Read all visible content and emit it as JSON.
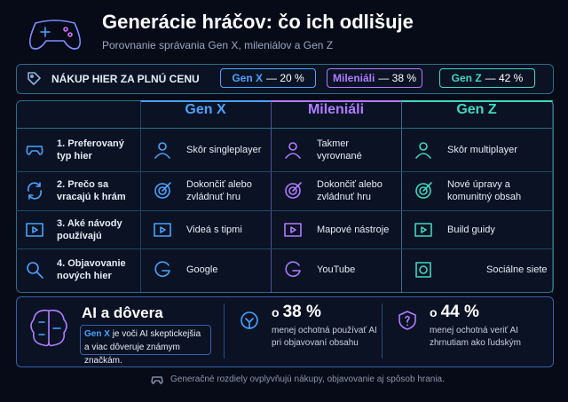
{
  "header": {
    "title": "Generácie hráčov: čo ich odlišuje",
    "subtitle": "Porovnanie správania Gen X, mileniálov a Gen Z"
  },
  "purchase": {
    "label": "NÁKUP HIER ZA PLNÚ CENU",
    "groups": [
      {
        "name": "Gen X",
        "value": "— 20 %",
        "color": "#4aa3ff"
      },
      {
        "name": "Mileniáli",
        "value": "— 38 %",
        "color": "#b07cff"
      },
      {
        "name": "Gen Z",
        "value": "— 42 %",
        "color": "#3fd8c0"
      }
    ]
  },
  "table": {
    "columns": [
      "Gen X",
      "Mileniáli",
      "Gen Z"
    ],
    "rows": [
      {
        "label": "1. Preferovaný typ hier",
        "cells": [
          "Skôr singleplayer",
          "Takmer vyrovnané",
          "Skôr multiplayer"
        ]
      },
      {
        "label": "2. Prečo sa vracajú k hrám",
        "cells": [
          "Dokončiť alebo zvládnuť hru",
          "Dokončiť alebo zvládnuť hru",
          "Nové úpravy a komunitný obsah"
        ]
      },
      {
        "label": "3. Aké návody používajú",
        "cells": [
          "Videá s tipmi",
          "Mapové nástroje",
          "Build guidy"
        ]
      },
      {
        "label": "4. Objavovanie nových hier",
        "cells": [
          "Google",
          "YouTube",
          "Sociálne siete"
        ]
      }
    ]
  },
  "ai": {
    "title": "AI a dôvera",
    "highlight": "Gen X",
    "note": "je voči AI skeptickejšia a viac dôveruje známym značkám.",
    "stats": [
      {
        "prefix": "o",
        "value": "38 %",
        "text": "menej ochotná používať AI pri objavovaní obsahu"
      },
      {
        "prefix": "o",
        "value": "44 %",
        "text": "menej ochotná veriť AI zhrnutiam ako ľudským"
      }
    ]
  },
  "footer": "Generačné rozdiely ovplyvňujú nákupy, objavovanie aj spôsob hrania."
}
